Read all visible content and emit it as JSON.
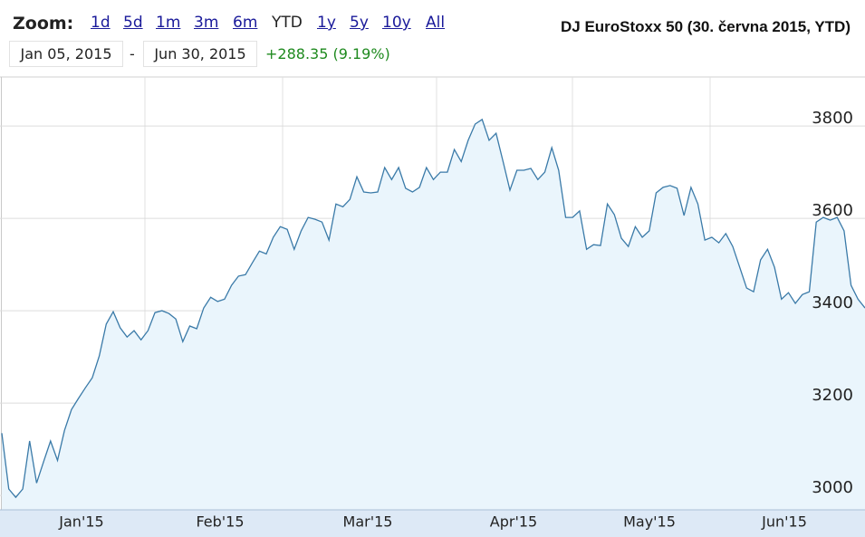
{
  "toolbar": {
    "zoom_label": "Zoom:",
    "zoom_options": [
      "1d",
      "5d",
      "1m",
      "3m",
      "6m",
      "YTD",
      "1y",
      "5y",
      "10y",
      "All"
    ],
    "active": "YTD",
    "date_from": "Jan 05, 2015",
    "separator": "-",
    "date_to": "Jun 30, 2015",
    "change": "+288.35 (9.19%)"
  },
  "chart_data": {
    "type": "line",
    "title": "DJ EuroStoxx 50 (30. června 2015, YTD)",
    "x_labels": [
      "Jan'15",
      "Feb'15",
      "Mar'15",
      "Apr'15",
      "May'15",
      "Jun'15"
    ],
    "values": [
      3135,
      3014,
      2996,
      3014,
      3118,
      3027,
      3073,
      3118,
      3076,
      3141,
      3186,
      3210,
      3233,
      3255,
      3302,
      3371,
      3398,
      3363,
      3343,
      3357,
      3337,
      3357,
      3396,
      3400,
      3394,
      3382,
      3333,
      3367,
      3361,
      3406,
      3429,
      3420,
      3425,
      3455,
      3475,
      3478,
      3504,
      3529,
      3523,
      3559,
      3582,
      3576,
      3533,
      3573,
      3602,
      3598,
      3592,
      3553,
      3631,
      3625,
      3641,
      3690,
      3657,
      3655,
      3657,
      3710,
      3684,
      3710,
      3665,
      3657,
      3667,
      3710,
      3684,
      3700,
      3700,
      3749,
      3723,
      3769,
      3804,
      3814,
      3769,
      3784,
      3723,
      3661,
      3704,
      3704,
      3708,
      3684,
      3700,
      3753,
      3704,
      3602,
      3602,
      3616,
      3533,
      3543,
      3541,
      3631,
      3608,
      3557,
      3539,
      3582,
      3559,
      3573,
      3655,
      3667,
      3671,
      3665,
      3606,
      3667,
      3631,
      3553,
      3559,
      3547,
      3567,
      3539,
      3494,
      3449,
      3441,
      3510,
      3533,
      3494,
      3425,
      3439,
      3416,
      3435,
      3441,
      3592,
      3602,
      3596,
      3602,
      3573,
      3455,
      3425,
      3406
    ],
    "color": "#3a7aa8",
    "fill": "#eaf5fc",
    "ylim": [
      2969,
      3906
    ],
    "yticks": [
      3000,
      3200,
      3400,
      3600,
      3800
    ],
    "grid": true
  }
}
